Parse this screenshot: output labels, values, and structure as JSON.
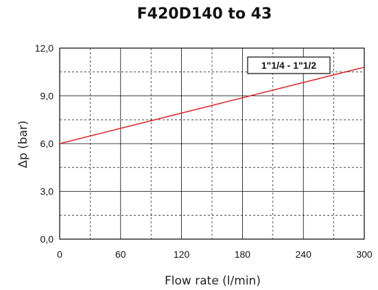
{
  "chart_data": {
    "type": "line",
    "title": "F420D140 to 43",
    "xlabel": "Flow rate (l/min)",
    "ylabel": "Δp (bar)",
    "xlim": [
      0,
      300
    ],
    "ylim": [
      0,
      12
    ],
    "x_ticks": [
      "0",
      "60",
      "120",
      "180",
      "240",
      "300"
    ],
    "y_ticks": [
      "0,0",
      "3,0",
      "6,0",
      "9,0",
      "12,0"
    ],
    "grid": true,
    "legend_position": "top-right",
    "series": [
      {
        "name": "1\"1/4 - 1\"1/2",
        "color": "#e02020",
        "x": [
          0,
          300
        ],
        "y": [
          6.0,
          10.8
        ]
      }
    ]
  }
}
